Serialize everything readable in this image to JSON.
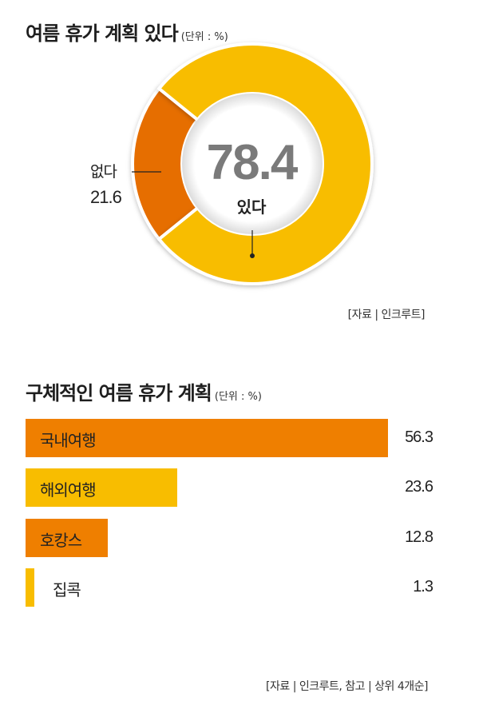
{
  "colors": {
    "orange": "#ef7f00",
    "yellow": "#f8bd00",
    "donut_orange": "#e66e00",
    "value_gray": "#7a7a7a"
  },
  "donut": {
    "title": "여름 휴가 계획 있다",
    "unit": "(단위 : %)",
    "source": "[자료 | 인크루트]"
  },
  "bars": {
    "title": "구체적인 여름 휴가 계획",
    "unit": "(단위 : %)",
    "source": "[자료 | 인크루트, 참고 | 상위 4개순]"
  },
  "chart_data": [
    {
      "type": "pie",
      "title": "여름 휴가 계획 있다",
      "unit": "(단위 : %)",
      "slices": [
        {
          "label": "있다",
          "value": 78.4,
          "color": "#f8bd00"
        },
        {
          "label": "없다",
          "value": 21.6,
          "color": "#e66e00"
        }
      ],
      "center_value": "78.4",
      "center_label": "있다",
      "outside_label": "없다",
      "outside_value": "21.6"
    },
    {
      "type": "bar",
      "title": "구체적인 여름 휴가 계획",
      "unit": "(단위 : %)",
      "categories": [
        "국내여행",
        "해외여행",
        "호캉스",
        "집콕"
      ],
      "values": [
        56.3,
        23.6,
        12.8,
        1.3
      ],
      "value_labels": [
        "56.3",
        "23.6",
        "12.8",
        "1.3"
      ],
      "colors": [
        "#ef7f00",
        "#f8bd00",
        "#ef7f00",
        "#f8bd00"
      ]
    }
  ]
}
